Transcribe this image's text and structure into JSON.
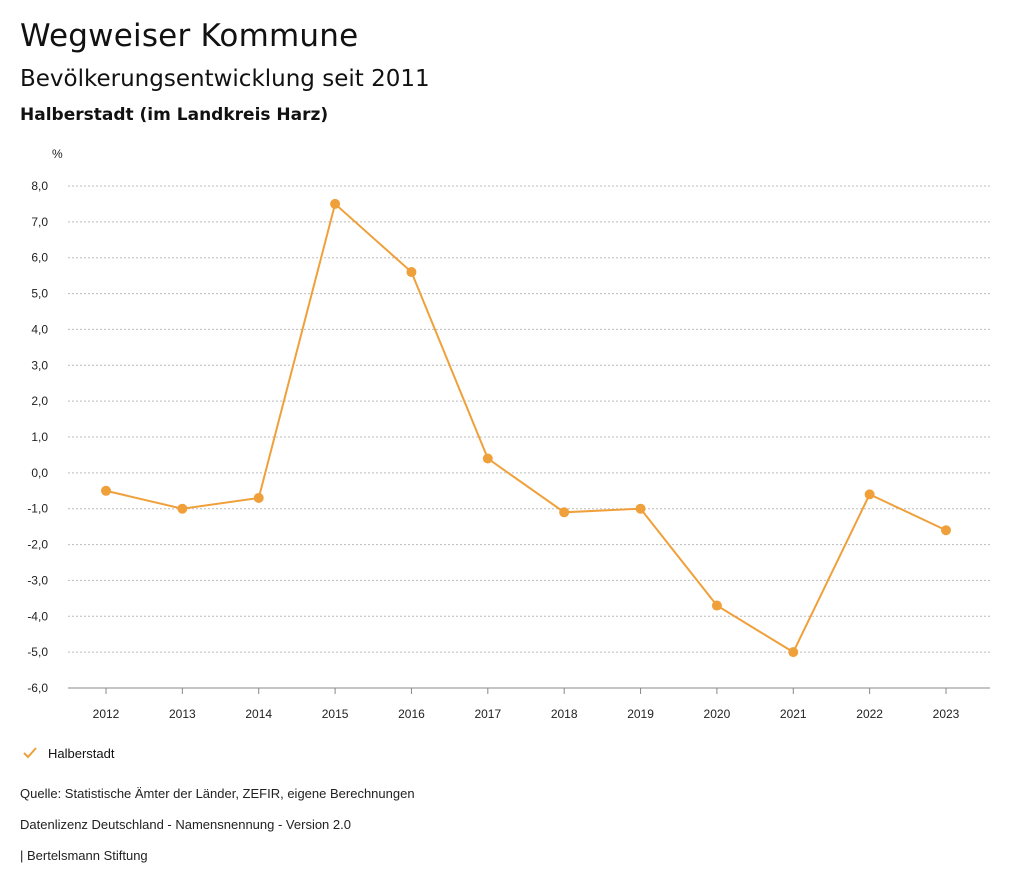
{
  "header": {
    "title": "Wegweiser Kommune",
    "subtitle": "Bevölkerungsentwicklung seit 2011",
    "region": "Halberstadt (im Landkreis Harz)"
  },
  "legend": {
    "label": "Halberstadt"
  },
  "footer": {
    "source": "Quelle: Statistische Ämter der Länder, ZEFIR, eigene Berechnungen",
    "license": "Datenlizenz Deutschland - Namensnennung - Version 2.0",
    "publisher": "| Bertelsmann Stiftung"
  },
  "colors": {
    "series": "#f0a03a",
    "grid": "#bbbbbb",
    "text": "#222222"
  },
  "chart_data": {
    "type": "line",
    "ylabel": "%",
    "ylim": [
      -6,
      8
    ],
    "y_ticks": [
      8,
      7,
      6,
      5,
      4,
      3,
      2,
      1,
      0,
      -1,
      -2,
      -3,
      -4,
      -5,
      -6
    ],
    "y_tick_labels": [
      "8,0",
      "7,0",
      "6,0",
      "5,0",
      "4,0",
      "3,0",
      "2,0",
      "1,0",
      "0,0",
      "-1,0",
      "-2,0",
      "-3,0",
      "-4,0",
      "-5,0",
      "-6,0"
    ],
    "categories": [
      "2012",
      "2013",
      "2014",
      "2015",
      "2016",
      "2017",
      "2018",
      "2019",
      "2020",
      "2021",
      "2022",
      "2023"
    ],
    "series": [
      {
        "name": "Halberstadt",
        "values": [
          -0.5,
          -1.0,
          -0.7,
          7.5,
          5.6,
          0.4,
          -1.1,
          -1.0,
          -3.7,
          -5.0,
          -0.6,
          -1.6
        ]
      }
    ],
    "grid": true,
    "legend_position": "bottom-left"
  }
}
